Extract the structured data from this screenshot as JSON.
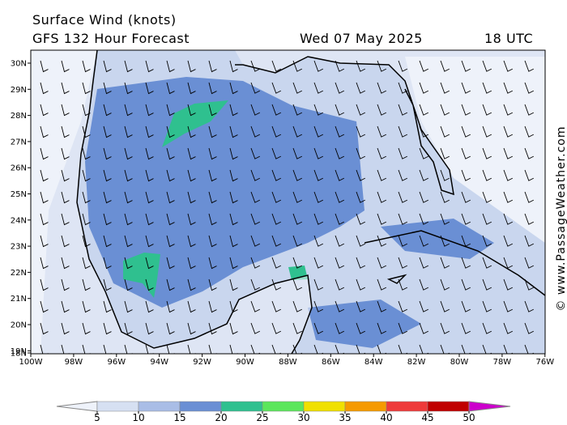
{
  "header": {
    "title": "Surface Wind (knots)",
    "subtitle": "GFS 132 Hour Forecast",
    "date": "Wed 07 May 2025",
    "time": "18 UTC"
  },
  "map": {
    "lat_labels": [
      "30N",
      "29N",
      "28N",
      "27N",
      "26N",
      "25N",
      "24N",
      "23N",
      "22N",
      "21N",
      "20N",
      "19N",
      "18N"
    ],
    "lon_labels": [
      "100W",
      "98W",
      "96W",
      "94W",
      "92W",
      "90W",
      "88W",
      "86W",
      "84W",
      "82W",
      "80W",
      "78W",
      "76W"
    ]
  },
  "colorbar": {
    "bounds": [
      5,
      10,
      15,
      20,
      25,
      30,
      35,
      40,
      45,
      50
    ],
    "colors": [
      "#eef2fa",
      "#d6e0f2",
      "#a9bde6",
      "#6a8fd4",
      "#2fc08f",
      "#5ce65c",
      "#f0e000",
      "#f59a00",
      "#ee3a3a",
      "#c00000",
      "#cc00cc"
    ]
  },
  "credit": "© www.PassageWeather.com"
}
